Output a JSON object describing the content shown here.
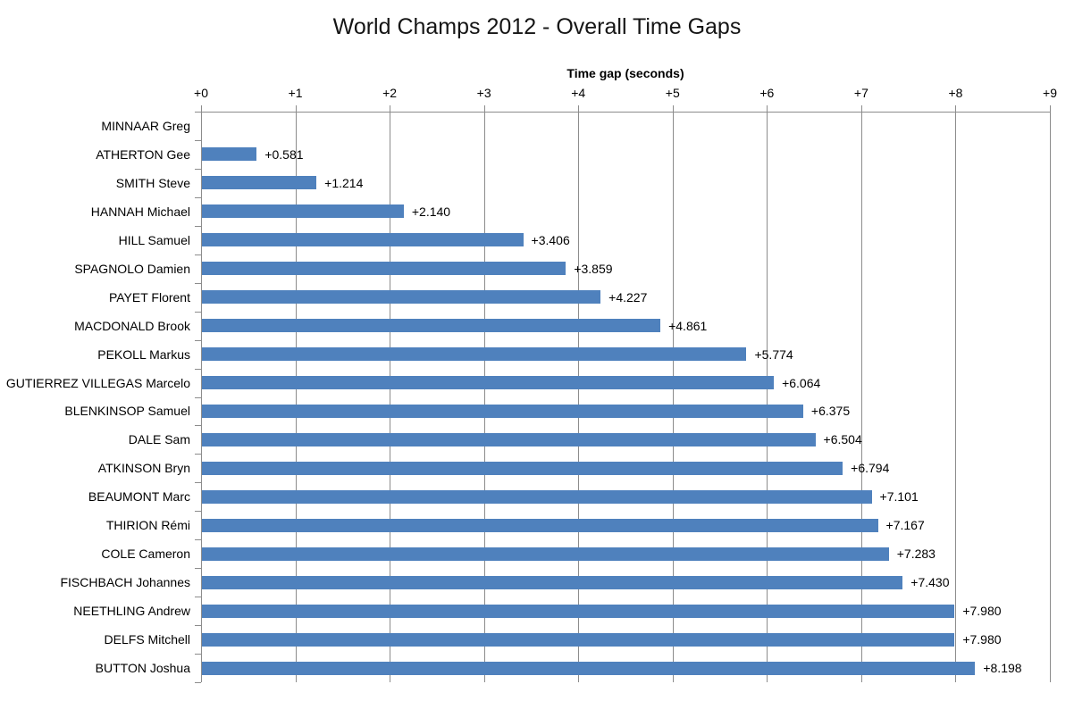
{
  "chart_data": {
    "type": "bar",
    "orientation": "horizontal",
    "title": "World Champs 2012 - Overall Time Gaps",
    "xlabel": "Time gap (seconds)",
    "ylabel": "",
    "categories": [
      "MINNAAR Greg",
      "ATHERTON Gee",
      "SMITH Steve",
      "HANNAH Michael",
      "HILL Samuel",
      "SPAGNOLO Damien",
      "PAYET Florent",
      "MACDONALD Brook",
      "PEKOLL Markus",
      "GUTIERREZ VILLEGAS Marcelo",
      "BLENKINSOP Samuel",
      "DALE Sam",
      "ATKINSON Bryn",
      "BEAUMONT Marc",
      "THIRION Rémi",
      "COLE Cameron",
      "FISCHBACH Johannes",
      "NEETHLING Andrew",
      "DELFS Mitchell",
      "BUTTON Joshua"
    ],
    "values": [
      0,
      0.581,
      1.214,
      2.14,
      3.406,
      3.859,
      4.227,
      4.861,
      5.774,
      6.064,
      6.375,
      6.504,
      6.794,
      7.101,
      7.167,
      7.283,
      7.43,
      7.98,
      7.98,
      8.198
    ],
    "data_labels": [
      "",
      "+0.581",
      "+1.214",
      "+2.140",
      "+3.406",
      "+3.859",
      "+4.227",
      "+4.861",
      "+5.774",
      "+6.064",
      "+6.375",
      "+6.504",
      "+6.794",
      "+7.101",
      "+7.167",
      "+7.283",
      "+7.430",
      "+7.980",
      "+7.980",
      "+8.198"
    ],
    "x_ticks": [
      "+0",
      "+1",
      "+2",
      "+3",
      "+4",
      "+5",
      "+6",
      "+7",
      "+8",
      "+9"
    ],
    "xlim": [
      0,
      9
    ],
    "grid": true,
    "legend": false,
    "colors": {
      "bar": "#4F81BD",
      "gridline": "#8C8C8C",
      "axis": "#8C8C8C",
      "text": "#000000",
      "title": "#151515",
      "background": "#FFFFFF"
    }
  }
}
